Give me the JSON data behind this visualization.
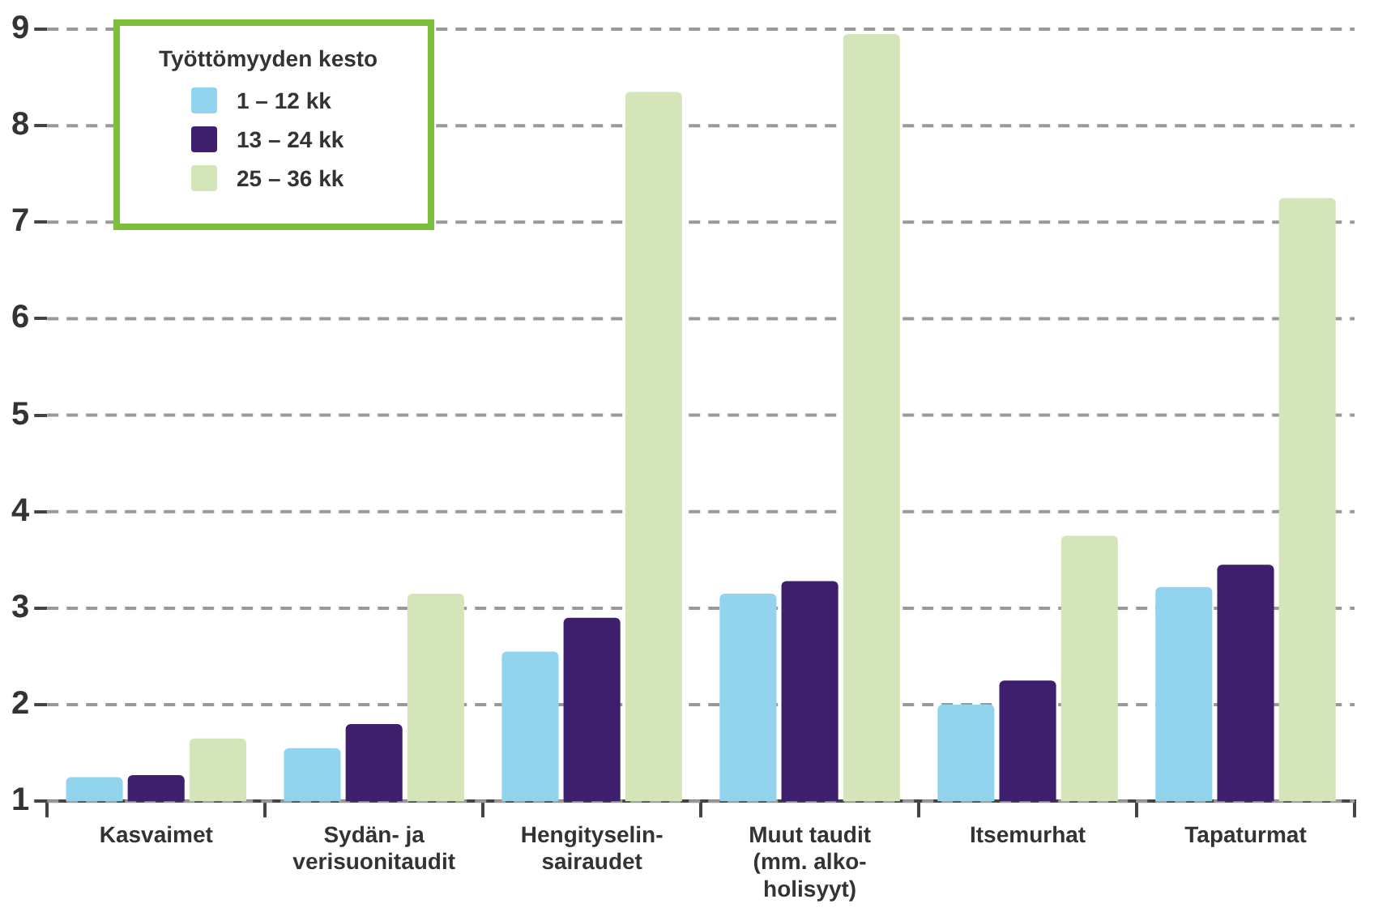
{
  "chart_data": {
    "type": "bar",
    "categories": [
      "Kasvaimet",
      "Sydän- ja\nverisuonitaudit",
      "Hengityselin-\nsairaudet",
      "Muut taudit\n(mm. alko-\nholisyyt)",
      "Itsemurhat",
      "Tapaturmat"
    ],
    "legend_title": "Työttömyyden kesto",
    "series": [
      {
        "name": "1 – 12 kk",
        "color": "#92d3ee",
        "values": [
          1.25,
          1.55,
          2.55,
          3.15,
          2.0,
          3.22
        ]
      },
      {
        "name": "13 – 24 kk",
        "color": "#3d1f6e",
        "values": [
          1.27,
          1.8,
          2.9,
          3.28,
          2.25,
          3.45
        ]
      },
      {
        "name": "25 – 36 kk",
        "color": "#d5e5ba",
        "values": [
          1.65,
          3.15,
          8.35,
          8.95,
          3.75,
          7.25
        ]
      }
    ],
    "ylim": [
      1,
      9
    ],
    "yticks": [
      1,
      2,
      3,
      4,
      5,
      6,
      7,
      8,
      9
    ],
    "grid": "y",
    "legend": "top left"
  }
}
